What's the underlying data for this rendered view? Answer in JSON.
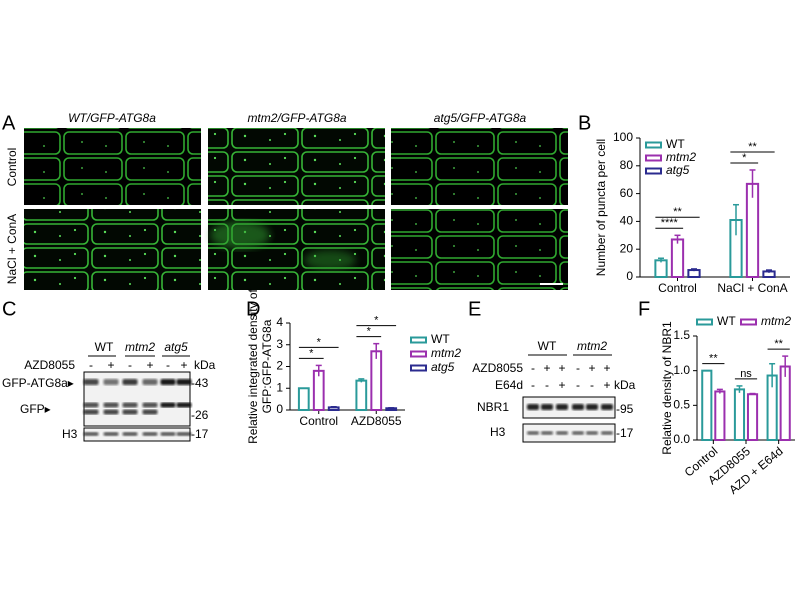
{
  "figure": {
    "panel_letters": [
      "A",
      "B",
      "C",
      "D",
      "E",
      "F"
    ],
    "panel_a": {
      "column_titles": [
        "WT/GFP-ATG8a",
        "mtm2/GFP-ATG8a",
        "atg5/GFP-ATG8a"
      ],
      "row_labels": [
        "Control",
        "NaCl + ConA"
      ]
    },
    "panel_c": {
      "groups": [
        "WT",
        "mtm2",
        "atg5"
      ],
      "treatment": "AZD8055",
      "signs": [
        "-",
        "+",
        "-",
        "+",
        "-",
        "+"
      ],
      "unit": "kDa",
      "bands": [
        "GFP-ATG8a▸",
        "GFP▸",
        "H3"
      ],
      "markers": [
        "-43",
        "-26",
        "-17"
      ]
    },
    "panel_e": {
      "groups": [
        "WT",
        "mtm2"
      ],
      "treatments": [
        "AZD8055",
        "E64d"
      ],
      "signs": [
        [
          "-",
          "+",
          "+",
          "-",
          "+",
          "+"
        ],
        [
          "-",
          "-",
          "+",
          "-",
          "-",
          "+"
        ]
      ],
      "unit": "kDa",
      "bands": [
        "NBR1",
        "H3"
      ],
      "markers": [
        "-95",
        "-17"
      ]
    }
  },
  "chart_data": [
    {
      "type": "bar",
      "ylabel": "Number of puncta per cell",
      "categories": [
        "Control",
        "NaCl + ConA"
      ],
      "series": [
        {
          "name": "WT",
          "color": "#2a9a9a",
          "font_style": "normal",
          "values": [
            12,
            41
          ],
          "errors": [
            1.5,
            11
          ]
        },
        {
          "name": "mtm2",
          "color": "#9b2fae",
          "font_style": "italic",
          "values": [
            27,
            67
          ],
          "errors": [
            3,
            10
          ]
        },
        {
          "name": "atg5",
          "color": "#2b2b8f",
          "font_style": "italic",
          "values": [
            5,
            4
          ],
          "errors": [
            0.8,
            1
          ]
        }
      ],
      "ylim": [
        0,
        100
      ],
      "yticks": [
        0,
        20,
        40,
        60,
        80,
        100
      ],
      "legend": "upper left",
      "annotations": [
        {
          "text": "****",
          "category": 0,
          "series": [
            0,
            1
          ]
        },
        {
          "text": "**",
          "category": 0,
          "series": [
            0,
            2
          ]
        },
        {
          "text": "*",
          "category": 1,
          "series": [
            0,
            1
          ]
        },
        {
          "text": "**",
          "category": 1,
          "series": [
            0,
            2
          ]
        }
      ]
    },
    {
      "type": "bar",
      "ylabel": [
        "Relative integrated density of",
        "GFP:GFP-ATG8a"
      ],
      "categories": [
        "Control",
        "AZD8055"
      ],
      "series": [
        {
          "name": "WT",
          "color": "#2a9a9a",
          "font_style": "normal",
          "values": [
            1.0,
            1.35
          ],
          "errors": [
            0,
            0.08
          ]
        },
        {
          "name": "mtm2",
          "color": "#9b2fae",
          "font_style": "italic",
          "values": [
            1.8,
            2.7
          ],
          "errors": [
            0.25,
            0.35
          ]
        },
        {
          "name": "atg5",
          "color": "#2b2b8f",
          "font_style": "italic",
          "values": [
            0.12,
            0.08
          ],
          "errors": [
            0.03,
            0.02
          ]
        }
      ],
      "ylim": [
        0,
        4
      ],
      "yticks": [
        0,
        1,
        2,
        3,
        4
      ],
      "legend": "right",
      "annotations": [
        {
          "text": "*",
          "category": 0,
          "series": [
            0,
            1
          ]
        },
        {
          "text": "*",
          "category": 0,
          "series": [
            0,
            2
          ]
        },
        {
          "text": "*",
          "category": 1,
          "series": [
            0,
            1
          ]
        },
        {
          "text": "*",
          "category": 1,
          "series": [
            0,
            2
          ]
        }
      ]
    },
    {
      "type": "bar",
      "ylabel": "Relative density of NBR1",
      "categories": [
        "Control",
        "AZD8055",
        "AZD + E64d"
      ],
      "series": [
        {
          "name": "WT",
          "color": "#2a9a9a",
          "font_style": "normal",
          "values": [
            1.0,
            0.73,
            0.93
          ],
          "errors": [
            0,
            0.05,
            0.17
          ]
        },
        {
          "name": "mtm2",
          "color": "#9b2fae",
          "font_style": "italic",
          "values": [
            0.7,
            0.66,
            1.06
          ],
          "errors": [
            0.03,
            0.01,
            0.15
          ]
        }
      ],
      "ylim": [
        0,
        1.5
      ],
      "yticks": [
        {
          "value": 0,
          "label": "0.0"
        },
        {
          "value": 0.5,
          "label": "0.5"
        },
        {
          "value": 1,
          "label": "1.0"
        },
        {
          "value": 1.5,
          "label": "1.5"
        }
      ],
      "legend": "top",
      "annotations": [
        {
          "text": "**",
          "category": 0,
          "series": [
            0,
            1
          ]
        },
        {
          "text": "ns",
          "category": 1,
          "series": [
            0,
            1
          ]
        },
        {
          "text": "**",
          "category": 2,
          "series": [
            0,
            1
          ]
        }
      ]
    }
  ]
}
